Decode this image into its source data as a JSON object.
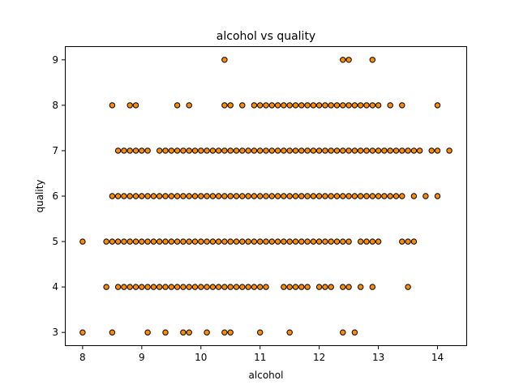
{
  "chart_data": {
    "type": "scatter",
    "title": "alcohol vs quality",
    "xlabel": "alcohol",
    "ylabel": "quality",
    "xlim": [
      7.7,
      14.5
    ],
    "ylim": [
      2.7,
      9.3
    ],
    "xticks": [
      8,
      9,
      10,
      11,
      12,
      13,
      14
    ],
    "yticks": [
      3,
      4,
      5,
      6,
      7,
      8,
      9
    ],
    "grid": false,
    "marker_color": "#ff8c00",
    "marker_edge": "#000000",
    "series": [
      {
        "rows": [
          {
            "y": 3,
            "x": [
              8.0,
              8.5,
              9.1,
              9.4,
              9.7,
              9.8,
              10.1,
              10.4,
              10.5,
              11.0,
              11.5,
              12.4,
              12.6
            ]
          },
          {
            "y": 4,
            "x": [
              8.4,
              8.6,
              8.7,
              8.8,
              8.9,
              9.0,
              9.1,
              9.2,
              9.3,
              9.4,
              9.5,
              9.6,
              9.7,
              9.8,
              9.9,
              10.0,
              10.1,
              10.2,
              10.3,
              10.4,
              10.5,
              10.6,
              10.7,
              10.8,
              10.9,
              11.0,
              11.1,
              11.4,
              11.5,
              11.6,
              11.7,
              11.8,
              12.0,
              12.1,
              12.2,
              12.4,
              12.5,
              12.7,
              12.9,
              13.5
            ]
          },
          {
            "y": 5,
            "x": [
              8.0,
              8.4,
              8.5,
              8.6,
              8.7,
              8.8,
              8.9,
              9.0,
              9.1,
              9.2,
              9.3,
              9.4,
              9.5,
              9.6,
              9.7,
              9.8,
              9.9,
              10.0,
              10.1,
              10.2,
              10.3,
              10.4,
              10.5,
              10.6,
              10.7,
              10.8,
              10.9,
              11.0,
              11.1,
              11.2,
              11.3,
              11.4,
              11.5,
              11.6,
              11.7,
              11.8,
              11.9,
              12.0,
              12.1,
              12.2,
              12.3,
              12.4,
              12.5,
              12.7,
              12.8,
              12.9,
              13.0,
              13.4,
              13.5,
              13.6
            ]
          },
          {
            "y": 6,
            "x": [
              8.5,
              8.6,
              8.7,
              8.8,
              8.9,
              9.0,
              9.1,
              9.2,
              9.3,
              9.4,
              9.5,
              9.6,
              9.7,
              9.8,
              9.9,
              10.0,
              10.1,
              10.2,
              10.3,
              10.4,
              10.5,
              10.6,
              10.7,
              10.8,
              10.9,
              11.0,
              11.1,
              11.2,
              11.3,
              11.4,
              11.5,
              11.6,
              11.7,
              11.8,
              11.9,
              12.0,
              12.1,
              12.2,
              12.3,
              12.4,
              12.5,
              12.6,
              12.7,
              12.8,
              12.9,
              13.0,
              13.1,
              13.2,
              13.3,
              13.4,
              13.6,
              13.8,
              14.0
            ]
          },
          {
            "y": 7,
            "x": [
              8.6,
              8.7,
              8.8,
              8.9,
              9.0,
              9.1,
              9.3,
              9.4,
              9.5,
              9.6,
              9.7,
              9.8,
              9.9,
              10.0,
              10.1,
              10.2,
              10.3,
              10.4,
              10.5,
              10.6,
              10.7,
              10.8,
              10.9,
              11.0,
              11.1,
              11.2,
              11.3,
              11.4,
              11.5,
              11.6,
              11.7,
              11.8,
              11.9,
              12.0,
              12.1,
              12.2,
              12.3,
              12.4,
              12.5,
              12.6,
              12.7,
              12.8,
              12.9,
              13.0,
              13.1,
              13.2,
              13.3,
              13.4,
              13.5,
              13.6,
              13.7,
              13.9,
              14.0,
              14.2
            ]
          },
          {
            "y": 8,
            "x": [
              8.5,
              8.8,
              8.9,
              9.6,
              9.8,
              10.4,
              10.5,
              10.7,
              10.9,
              11.0,
              11.1,
              11.2,
              11.3,
              11.4,
              11.5,
              11.6,
              11.7,
              11.8,
              11.9,
              12.0,
              12.1,
              12.2,
              12.3,
              12.4,
              12.5,
              12.6,
              12.7,
              12.8,
              12.9,
              13.0,
              13.2,
              13.4,
              14.0
            ]
          },
          {
            "y": 9,
            "x": [
              10.4,
              12.4,
              12.5,
              12.9
            ]
          }
        ]
      }
    ]
  }
}
